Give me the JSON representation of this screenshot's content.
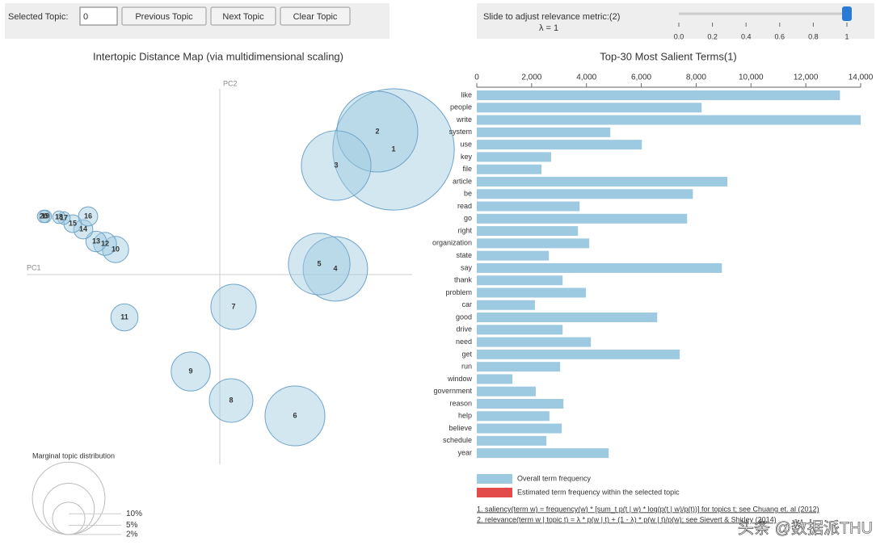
{
  "controls": {
    "selected_label": "Selected Topic:",
    "selected_value": "0",
    "buttons": [
      "Previous Topic",
      "Next Topic",
      "Clear Topic"
    ],
    "slider_label": "Slide to adjust relevance metric:(2)",
    "lambda_label": "λ = 1",
    "lambda": 1,
    "slider_ticks": [
      {
        "value": 0,
        "label": "0.0"
      },
      {
        "value": 0.2,
        "label": "0.2"
      },
      {
        "value": 0.4,
        "label": "0.4"
      },
      {
        "value": 0.6,
        "label": "0.6"
      },
      {
        "value": 0.8,
        "label": "0.8"
      },
      1
    ]
  },
  "chart_data": [
    {
      "type": "bubble",
      "title": "Intertopic Distance Map (via multidimensional scaling)",
      "xlabel": "PC1",
      "ylabel": "PC2",
      "color": "#9ecae1",
      "xlim": [
        -2.39,
        2.38
      ],
      "ylim": [
        -2.1,
        2.3
      ],
      "labels": [
        "1",
        "2",
        "3",
        "4",
        "5",
        "6",
        "7",
        "8",
        "9",
        "10",
        "11",
        "12",
        "13",
        "14",
        "15",
        "16",
        "17",
        "18",
        "19",
        "20"
      ],
      "x": [
        2.15,
        1.95,
        1.44,
        1.43,
        1.23,
        0.93,
        0.17,
        0.14,
        -0.36,
        -1.29,
        -1.18,
        -1.42,
        -1.53,
        -1.69,
        -1.82,
        -1.63,
        -1.93,
        -1.99,
        -2.16,
        -2.18
      ],
      "y": [
        1.55,
        1.77,
        1.35,
        0.07,
        0.13,
        -1.75,
        -0.4,
        -1.56,
        -1.2,
        0.31,
        -0.53,
        0.38,
        0.41,
        0.56,
        0.63,
        0.72,
        0.7,
        0.71,
        0.72,
        0.72
      ],
      "sizes": [
        28,
        12.4,
        9.2,
        7.9,
        7.2,
        6.8,
        3.9,
        3.6,
        2.9,
        1.3,
        1.4,
        1.0,
        0.8,
        0.7,
        0.6,
        0.7,
        0.3,
        0.3,
        0.3,
        0.3
      ],
      "size_legend": {
        "title": "Marginal topic distribution",
        "values": [
          2,
          5,
          10
        ],
        "value_labels": [
          "2%",
          "5%",
          "10%"
        ]
      }
    },
    {
      "type": "hbar",
      "title": "Top-30 Most Salient Terms(1)",
      "color": "#9ecae1",
      "categories": [
        "like",
        "people",
        "write",
        "system",
        "use",
        "key",
        "file",
        "article",
        "be",
        "read",
        "go",
        "right",
        "organization",
        "state",
        "say",
        "thank",
        "problem",
        "car",
        "good",
        "drive",
        "need",
        "get",
        "run",
        "window",
        "government",
        "reason",
        "help",
        "believe",
        "schedule",
        "year"
      ],
      "values": [
        13245,
        8200,
        14000,
        4870,
        6020,
        2710,
        2360,
        9140,
        7880,
        3750,
        7670,
        3690,
        4100,
        2630,
        8940,
        3130,
        3980,
        2120,
        6580,
        3130,
        4160,
        7400,
        3040,
        1300,
        2150,
        3160,
        2650,
        3100,
        2540,
        4810
      ],
      "xlim": [
        0,
        14000
      ],
      "xticks": [
        0,
        {
          "value": 2000,
          "label": "2,000"
        },
        {
          "value": 4000,
          "label": "4,000"
        },
        {
          "value": 6000,
          "label": "6,000"
        },
        {
          "value": 8000,
          "label": "8,000"
        },
        {
          "value": 10000,
          "label": "10,000"
        },
        {
          "value": 12000,
          "label": "12,000"
        },
        {
          "value": 14000,
          "label": "14,000"
        }
      ],
      "legend": [
        {
          "name": "Overall term frequency",
          "color": "#9ecae1"
        },
        {
          "name": "Estimated term frequency within the selected topic",
          "color": "#e34a4a"
        }
      ],
      "notes": [
        "1. saliency(term w) = frequency(w) * [sum_t p(t | w) * log(p(t | w)/p(t))] for topics t; see Chuang et. al (2012)",
        "2. relevance(term w | topic t) = λ * p(w | t) + (1 - λ) * p(w | t)/p(w); see Sievert & Shirley (2014)"
      ]
    }
  ],
  "watermark": "头条 @数据派THU"
}
